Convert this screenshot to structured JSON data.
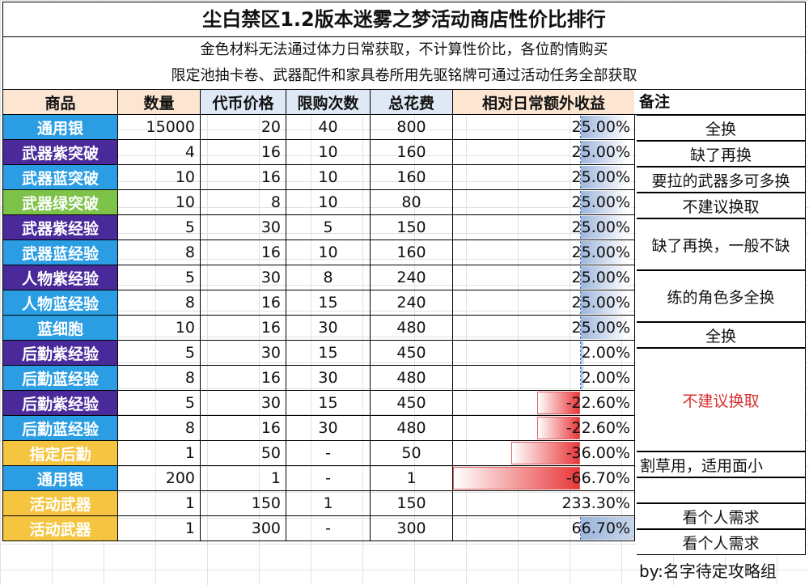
{
  "title": "尘白禁区1.2版本迷雾之梦活动商店性价比排行",
  "notes": [
    "金色材料无法通过体力日常获取，不计算性价比，各位酌情购买",
    "限定池抽卡卷、武器配件和家具卷所用先驱铭牌可通过活动任务全部获取"
  ],
  "headers": {
    "item": "商品",
    "qty": "数量",
    "price": "代币价格",
    "limit": "限购次数",
    "total": "总花费",
    "gain": "相对日常额外收益",
    "note": "备注"
  },
  "colors": {
    "silver": "#2a9de3",
    "purple": "#4a2a9a",
    "blue": "#2a9de3",
    "green": "#7dc34a",
    "gold": "#f5c542",
    "bar_blue": "#9db6dc",
    "bar_red": "#e8383a"
  },
  "rows": [
    {
      "item": "通用银",
      "tier": "silver",
      "qty": "15000",
      "price": "20",
      "limit": "40",
      "total": "800",
      "gain": "25.00%",
      "gain_value": 25.0
    },
    {
      "item": "武器紫突破",
      "tier": "purple",
      "qty": "4",
      "price": "16",
      "limit": "10",
      "total": "160",
      "gain": "25.00%",
      "gain_value": 25.0
    },
    {
      "item": "武器蓝突破",
      "tier": "blue",
      "qty": "10",
      "price": "16",
      "limit": "10",
      "total": "160",
      "gain": "25.00%",
      "gain_value": 25.0
    },
    {
      "item": "武器绿突破",
      "tier": "green",
      "qty": "10",
      "price": "8",
      "limit": "10",
      "total": "80",
      "gain": "25.00%",
      "gain_value": 25.0
    },
    {
      "item": "武器紫经验",
      "tier": "purple",
      "qty": "5",
      "price": "30",
      "limit": "5",
      "total": "150",
      "gain": "25.00%",
      "gain_value": 25.0
    },
    {
      "item": "武器蓝经验",
      "tier": "blue",
      "qty": "8",
      "price": "16",
      "limit": "10",
      "total": "160",
      "gain": "25.00%",
      "gain_value": 25.0
    },
    {
      "item": "人物紫经验",
      "tier": "purple",
      "qty": "5",
      "price": "30",
      "limit": "8",
      "total": "240",
      "gain": "25.00%",
      "gain_value": 25.0
    },
    {
      "item": "人物蓝经验",
      "tier": "blue",
      "qty": "8",
      "price": "16",
      "limit": "15",
      "total": "240",
      "gain": "25.00%",
      "gain_value": 25.0
    },
    {
      "item": "蓝细胞",
      "tier": "blue",
      "qty": "10",
      "price": "16",
      "limit": "30",
      "total": "480",
      "gain": "25.00%",
      "gain_value": 25.0
    },
    {
      "item": "后勤紫经验",
      "tier": "purple",
      "qty": "5",
      "price": "30",
      "limit": "15",
      "total": "450",
      "gain": "2.00%",
      "gain_value": 2.0
    },
    {
      "item": "后勤蓝经验",
      "tier": "blue",
      "qty": "8",
      "price": "16",
      "limit": "30",
      "total": "480",
      "gain": "2.00%",
      "gain_value": 2.0
    },
    {
      "item": "后勤紫经验",
      "tier": "purple",
      "qty": "5",
      "price": "30",
      "limit": "15",
      "total": "450",
      "gain": "-22.60%",
      "gain_value": -22.6
    },
    {
      "item": "后勤蓝经验",
      "tier": "blue",
      "qty": "8",
      "price": "16",
      "limit": "30",
      "total": "480",
      "gain": "-22.60%",
      "gain_value": -22.6
    },
    {
      "item": "指定后勤",
      "tier": "gold",
      "qty": "1",
      "price": "50",
      "limit": "-",
      "total": "50",
      "gain": "-36.00%",
      "gain_value": -36.0
    },
    {
      "item": "通用银",
      "tier": "silver",
      "qty": "200",
      "price": "1",
      "limit": "-",
      "total": "1",
      "gain": "-66.70%",
      "gain_value": -66.7
    },
    {
      "item": "活动武器",
      "tier": "gold",
      "qty": "1",
      "price": "150",
      "limit": "1",
      "total": "150",
      "gain": "233.30%",
      "gain_value": 233.3
    },
    {
      "item": "活动武器",
      "tier": "gold",
      "qty": "1",
      "price": "300",
      "limit": "-",
      "total": "300",
      "gain": "66.70%",
      "gain_value": 66.7
    }
  ],
  "remarks": [
    {
      "text": "全换",
      "start": 0,
      "span": 1,
      "style": ""
    },
    {
      "text": "缺了再换",
      "start": 1,
      "span": 1,
      "style": ""
    },
    {
      "text": "要拉的武器多可多换",
      "start": 2,
      "span": 1,
      "style": ""
    },
    {
      "text": "不建议换取",
      "start": 3,
      "span": 1,
      "style": ""
    },
    {
      "text": "缺了再换，一般不缺",
      "start": 4,
      "span": 2,
      "style": ""
    },
    {
      "text": "练的角色多全换",
      "start": 6,
      "span": 2,
      "style": ""
    },
    {
      "text": "全换",
      "start": 8,
      "span": 1,
      "style": ""
    },
    {
      "text": "不建议换取",
      "start": 9,
      "span": 4,
      "style": "red"
    },
    {
      "text": "割草用，适用面小",
      "start": 13,
      "span": 1,
      "style": "left"
    },
    {
      "text": "",
      "start": 14,
      "span": 1,
      "style": ""
    },
    {
      "text": "看个人需求",
      "start": 15,
      "span": 1,
      "style": ""
    },
    {
      "text": "看个人需求",
      "start": 16,
      "span": 1,
      "style": ""
    }
  ],
  "byline": "by:名字待定攻略组"
}
